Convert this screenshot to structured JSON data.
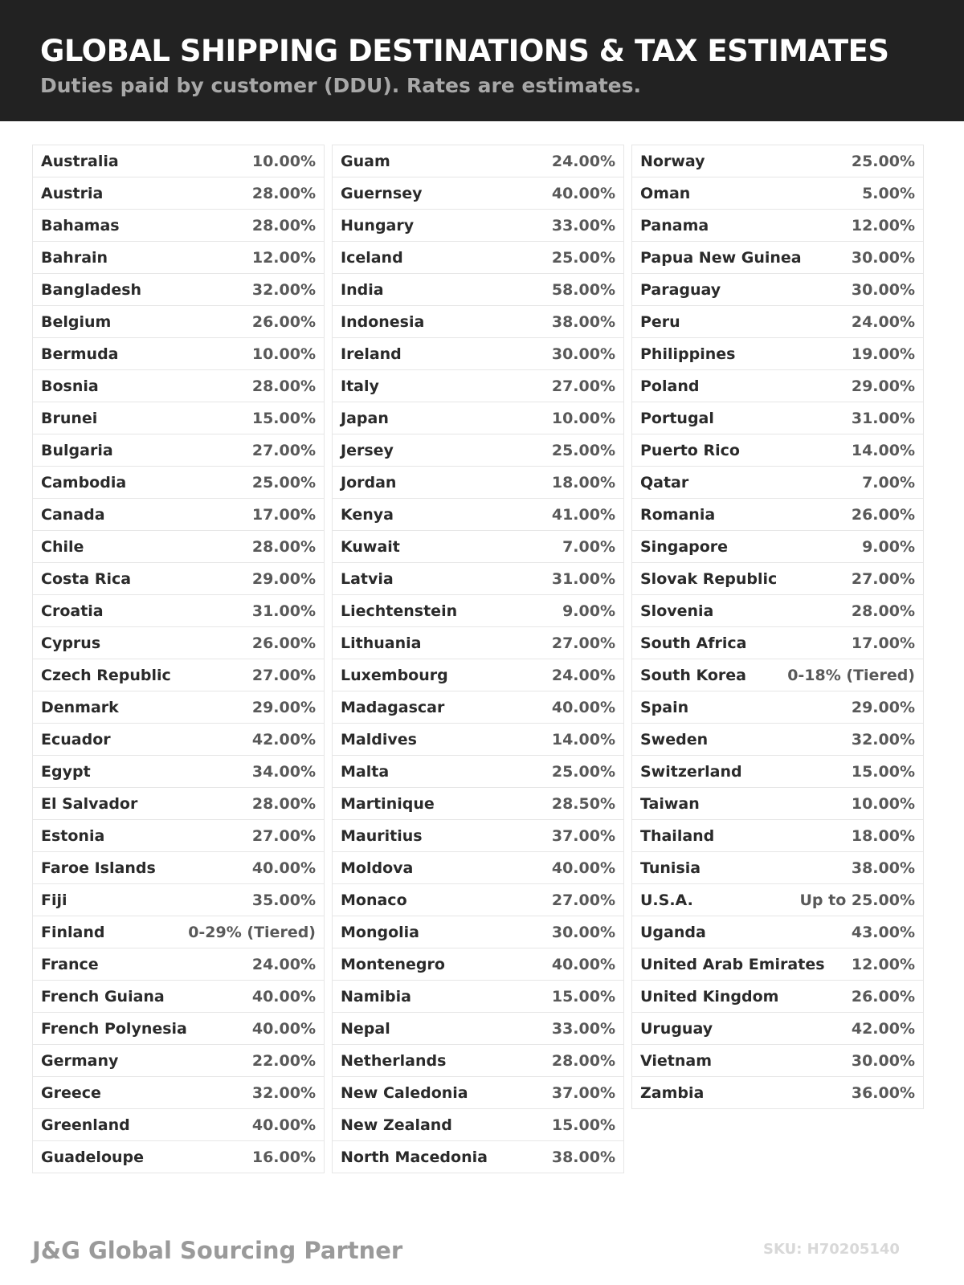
{
  "header": {
    "title": "GLOBAL SHIPPING DESTINATIONS & TAX ESTIMATES",
    "subtitle": "Duties paid by customer (DDU). Rates are estimates."
  },
  "columns": [
    [
      [
        "Australia",
        "10.00%"
      ],
      [
        "Austria",
        "28.00%"
      ],
      [
        "Bahamas",
        "28.00%"
      ],
      [
        "Bahrain",
        "12.00%"
      ],
      [
        "Bangladesh",
        "32.00%"
      ],
      [
        "Belgium",
        "26.00%"
      ],
      [
        "Bermuda",
        "10.00%"
      ],
      [
        "Bosnia",
        "28.00%"
      ],
      [
        "Brunei",
        "15.00%"
      ],
      [
        "Bulgaria",
        "27.00%"
      ],
      [
        "Cambodia",
        "25.00%"
      ],
      [
        "Canada",
        "17.00%"
      ],
      [
        "Chile",
        "28.00%"
      ],
      [
        "Costa Rica",
        "29.00%"
      ],
      [
        "Croatia",
        "31.00%"
      ],
      [
        "Cyprus",
        "26.00%"
      ],
      [
        "Czech Republic",
        "27.00%"
      ],
      [
        "Denmark",
        "29.00%"
      ],
      [
        "Ecuador",
        "42.00%"
      ],
      [
        "Egypt",
        "34.00%"
      ],
      [
        "El Salvador",
        "28.00%"
      ],
      [
        "Estonia",
        "27.00%"
      ],
      [
        "Faroe Islands",
        "40.00%"
      ],
      [
        "Fiji",
        "35.00%"
      ],
      [
        "Finland",
        "0-29% (Tiered)"
      ],
      [
        "France",
        "24.00%"
      ],
      [
        "French Guiana",
        "40.00%"
      ],
      [
        "French Polynesia",
        "40.00%"
      ],
      [
        "Germany",
        "22.00%"
      ],
      [
        "Greece",
        "32.00%"
      ],
      [
        "Greenland",
        "40.00%"
      ],
      [
        "Guadeloupe",
        "16.00%"
      ]
    ],
    [
      [
        "Guam",
        "24.00%"
      ],
      [
        "Guernsey",
        "40.00%"
      ],
      [
        "Hungary",
        "33.00%"
      ],
      [
        "Iceland",
        "25.00%"
      ],
      [
        "India",
        "58.00%"
      ],
      [
        "Indonesia",
        "38.00%"
      ],
      [
        "Ireland",
        "30.00%"
      ],
      [
        "Italy",
        "27.00%"
      ],
      [
        "Japan",
        "10.00%"
      ],
      [
        "Jersey",
        "25.00%"
      ],
      [
        "Jordan",
        "18.00%"
      ],
      [
        "Kenya",
        "41.00%"
      ],
      [
        "Kuwait",
        "7.00%"
      ],
      [
        "Latvia",
        "31.00%"
      ],
      [
        "Liechtenstein",
        "9.00%"
      ],
      [
        "Lithuania",
        "27.00%"
      ],
      [
        "Luxembourg",
        "24.00%"
      ],
      [
        "Madagascar",
        "40.00%"
      ],
      [
        "Maldives",
        "14.00%"
      ],
      [
        "Malta",
        "25.00%"
      ],
      [
        "Martinique",
        "28.50%"
      ],
      [
        "Mauritius",
        "37.00%"
      ],
      [
        "Moldova",
        "40.00%"
      ],
      [
        "Monaco",
        "27.00%"
      ],
      [
        "Mongolia",
        "30.00%"
      ],
      [
        "Montenegro",
        "40.00%"
      ],
      [
        "Namibia",
        "15.00%"
      ],
      [
        "Nepal",
        "33.00%"
      ],
      [
        "Netherlands",
        "28.00%"
      ],
      [
        "New Caledonia",
        "37.00%"
      ],
      [
        "New Zealand",
        "15.00%"
      ],
      [
        "North Macedonia",
        "38.00%"
      ]
    ],
    [
      [
        "Norway",
        "25.00%"
      ],
      [
        "Oman",
        "5.00%"
      ],
      [
        "Panama",
        "12.00%"
      ],
      [
        "Papua New Guinea",
        "30.00%"
      ],
      [
        "Paraguay",
        "30.00%"
      ],
      [
        "Peru",
        "24.00%"
      ],
      [
        "Philippines",
        "19.00%"
      ],
      [
        "Poland",
        "29.00%"
      ],
      [
        "Portugal",
        "31.00%"
      ],
      [
        "Puerto Rico",
        "14.00%"
      ],
      [
        "Qatar",
        "7.00%"
      ],
      [
        "Romania",
        "26.00%"
      ],
      [
        "Singapore",
        "9.00%"
      ],
      [
        "Slovak Republic",
        "27.00%"
      ],
      [
        "Slovenia",
        "28.00%"
      ],
      [
        "South Africa",
        "17.00%"
      ],
      [
        "South Korea",
        "0-18% (Tiered)"
      ],
      [
        "Spain",
        "29.00%"
      ],
      [
        "Sweden",
        "32.00%"
      ],
      [
        "Switzerland",
        "15.00%"
      ],
      [
        "Taiwan",
        "10.00%"
      ],
      [
        "Thailand",
        "18.00%"
      ],
      [
        "Tunisia",
        "38.00%"
      ],
      [
        "U.S.A.",
        "Up to 25.00%"
      ],
      [
        "Uganda",
        "43.00%"
      ],
      [
        "United Arab Emirates",
        "12.00%"
      ],
      [
        "United Kingdom",
        "26.00%"
      ],
      [
        "Uruguay",
        "42.00%"
      ],
      [
        "Vietnam",
        "30.00%"
      ],
      [
        "Zambia",
        "36.00%"
      ]
    ]
  ],
  "footer": {
    "brand": "J&G Global Sourcing Partner",
    "sku": "SKU: H70205140"
  }
}
